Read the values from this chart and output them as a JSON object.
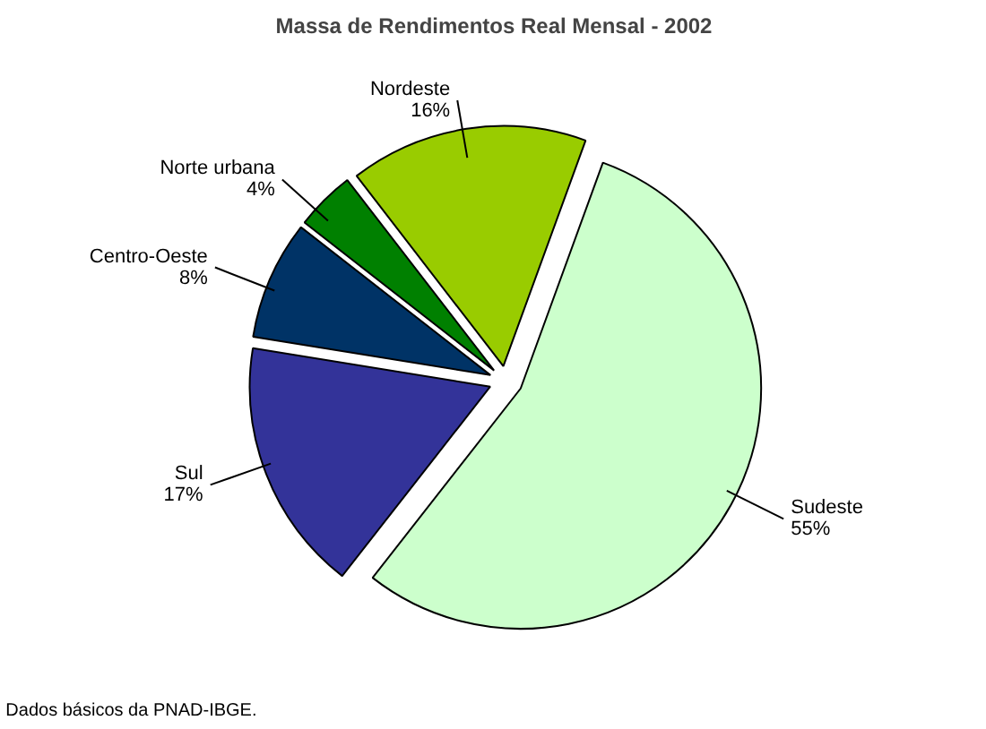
{
  "chart_data": {
    "type": "pie",
    "title": "Massa de Rendimentos Real Mensal - 2002",
    "categories": [
      "Sudeste",
      "Sul",
      "Centro-Oeste",
      "Norte urbana",
      "Nordeste"
    ],
    "values": [
      55,
      17,
      8,
      4,
      16
    ],
    "value_labels": [
      "55%",
      "17%",
      "8%",
      "4%",
      "16%"
    ],
    "colors": [
      "#ccffcc",
      "#333399",
      "#003366",
      "#008000",
      "#99cc00"
    ],
    "annotations": [
      "Dados básicos da PNAD-IBGE."
    ]
  }
}
